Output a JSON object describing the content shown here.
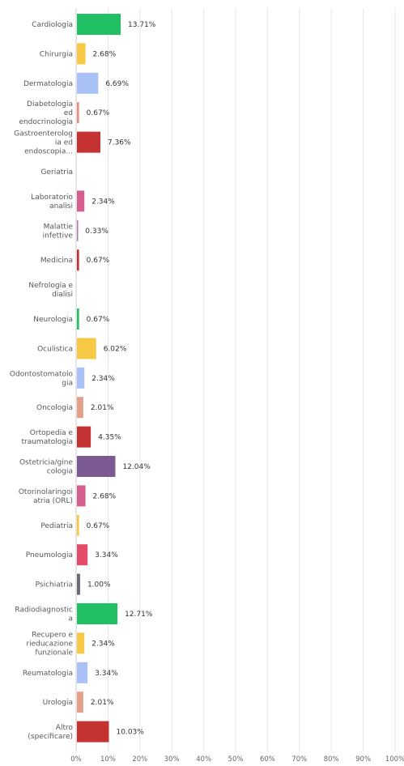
{
  "chart_data": {
    "type": "bar",
    "orientation": "horizontal",
    "categories": [
      [
        "Cardiologia"
      ],
      [
        "Chirurgia"
      ],
      [
        "Dermatologia"
      ],
      [
        "Diabetologia",
        "ed",
        "endocrinologia"
      ],
      [
        "Gastroenterolog",
        "ia ed",
        "endoscopia..."
      ],
      [
        "Geriatria"
      ],
      [
        "Laboratorio",
        "analisi"
      ],
      [
        "Malattie",
        "infettive"
      ],
      [
        "Medicina"
      ],
      [
        "Nefrologia e",
        "dialisi"
      ],
      [
        "Neurologia"
      ],
      [
        "Oculistica"
      ],
      [
        "Odontostomatolo",
        "gia"
      ],
      [
        "Oncologia"
      ],
      [
        "Ortopedia e",
        "traumatologia"
      ],
      [
        "Ostetricia/gine",
        "cologia"
      ],
      [
        "Otorinolaringoi",
        "atria (ORL)"
      ],
      [
        "Pediatria"
      ],
      [
        "Pneumologia"
      ],
      [
        "Psichiatria"
      ],
      [
        "Radiodiagnostic",
        "a"
      ],
      [
        "Recupero e",
        "rieducazione",
        "funzionale"
      ],
      [
        "Reumatologia"
      ],
      [
        "Urologia"
      ],
      [
        "Altro",
        "(specificare)"
      ]
    ],
    "values": [
      13.71,
      2.68,
      6.69,
      0.67,
      7.36,
      0,
      2.34,
      0.33,
      0.67,
      0,
      0.67,
      6.02,
      2.34,
      2.01,
      4.35,
      12.04,
      2.68,
      0.67,
      3.34,
      1.0,
      12.71,
      2.34,
      3.34,
      2.01,
      10.03
    ],
    "value_labels": [
      "13.71%",
      "2.68%",
      "6.69%",
      "0.67%",
      "7.36%",
      "",
      "2.34%",
      "0.33%",
      "0.67%",
      "",
      "0.67%",
      "6.02%",
      "2.34%",
      "2.01%",
      "4.35%",
      "12.04%",
      "2.68%",
      "0.67%",
      "3.34%",
      "1.00%",
      "12.71%",
      "2.34%",
      "3.34%",
      "2.01%",
      "10.03%"
    ],
    "colors": [
      "#21c064",
      "#f6c944",
      "#a9c1f4",
      "#e58f84",
      "#c53232",
      "#c53232",
      "#d45f8f",
      "#a87aa9",
      "#c53232",
      "#c53232",
      "#21c064",
      "#f6c944",
      "#a9c1f4",
      "#e5a08c",
      "#c53232",
      "#7b5a93",
      "#d45f8f",
      "#f6c944",
      "#e44c6c",
      "#6b6b78",
      "#21c064",
      "#f6c944",
      "#a9c1f4",
      "#e5a08c",
      "#c53232"
    ],
    "xlim": [
      0,
      100
    ],
    "xticks": [
      "0%",
      "10%",
      "20%",
      "30%",
      "40%",
      "50%",
      "60%",
      "70%",
      "80%",
      "90%",
      "100%"
    ],
    "grid": true,
    "title": "",
    "xlabel": "",
    "ylabel": ""
  }
}
